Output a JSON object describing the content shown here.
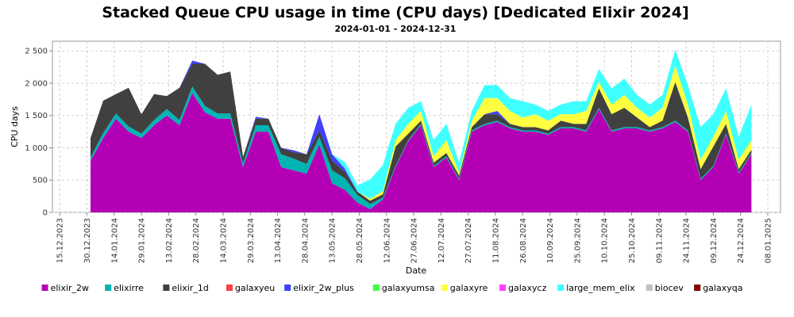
{
  "chart_data": {
    "type": "area",
    "stacked": true,
    "title": "Stacked Queue CPU usage in time (CPU days) [Dedicated Elixir 2024]",
    "subtitle": "2024-01-01 - 2024-12-31",
    "xlabel": "Date",
    "ylabel": "CPU days",
    "ylim": [
      0,
      2650
    ],
    "y_ticks": [
      "0",
      "500",
      "1 000",
      "1 500",
      "2 000",
      "2 500"
    ],
    "y_tick_values": [
      0,
      500,
      1000,
      1500,
      2000,
      2500
    ],
    "xlim": [
      "2023-12-11",
      "2025-01-15"
    ],
    "x_ticks": [
      "15.12.2023",
      "30.12.2023",
      "14.01.2024",
      "29.01.2024",
      "13.02.2024",
      "28.02.2024",
      "14.03.2024",
      "29.03.2024",
      "13.04.2024",
      "28.04.2024",
      "13.05.2024",
      "28.05.2024",
      "12.06.2024",
      "27.06.2024",
      "12.07.2024",
      "27.07.2024",
      "11.08.2024",
      "26.08.2024",
      "10.09.2024",
      "25.09.2024",
      "10.10.2024",
      "25.10.2024",
      "09.11.2024",
      "24.11.2024",
      "09.12.2024",
      "24.12.2024",
      "08.01.2025"
    ],
    "x_tick_dates": [
      "2023-12-15",
      "2023-12-30",
      "2024-01-14",
      "2024-01-29",
      "2024-02-13",
      "2024-02-28",
      "2024-03-14",
      "2024-03-29",
      "2024-04-13",
      "2024-04-28",
      "2024-05-13",
      "2024-05-28",
      "2024-06-12",
      "2024-06-27",
      "2024-07-12",
      "2024-07-27",
      "2024-08-11",
      "2024-08-26",
      "2024-09-10",
      "2024-09-25",
      "2024-10-10",
      "2024-10-25",
      "2024-11-09",
      "2024-11-24",
      "2024-12-09",
      "2024-12-24",
      "2025-01-08"
    ],
    "grid": true,
    "legend_position": "bottom",
    "x": [
      "2024-01-01",
      "2024-01-08",
      "2024-01-15",
      "2024-01-22",
      "2024-01-29",
      "2024-02-05",
      "2024-02-12",
      "2024-02-19",
      "2024-02-26",
      "2024-03-04",
      "2024-03-11",
      "2024-03-18",
      "2024-03-25",
      "2024-04-01",
      "2024-04-08",
      "2024-04-15",
      "2024-04-22",
      "2024-04-29",
      "2024-05-06",
      "2024-05-13",
      "2024-05-20",
      "2024-05-27",
      "2024-06-03",
      "2024-06-10",
      "2024-06-17",
      "2024-06-24",
      "2024-07-01",
      "2024-07-08",
      "2024-07-15",
      "2024-07-22",
      "2024-07-29",
      "2024-08-05",
      "2024-08-12",
      "2024-08-19",
      "2024-08-26",
      "2024-09-02",
      "2024-09-09",
      "2024-09-16",
      "2024-09-23",
      "2024-09-30",
      "2024-10-07",
      "2024-10-14",
      "2024-10-21",
      "2024-10-28",
      "2024-11-04",
      "2024-11-11",
      "2024-11-18",
      "2024-11-25",
      "2024-12-02",
      "2024-12-09",
      "2024-12-16",
      "2024-12-23",
      "2024-12-30"
    ],
    "series": [
      {
        "name": "elixir_2w",
        "color": "#b400b4",
        "values": [
          800,
          1150,
          1450,
          1250,
          1150,
          1350,
          1500,
          1350,
          1850,
          1550,
          1450,
          1450,
          700,
          1250,
          1250,
          700,
          650,
          600,
          1050,
          450,
          350,
          150,
          50,
          200,
          700,
          1100,
          1350,
          700,
          850,
          500,
          1250,
          1350,
          1400,
          1300,
          1250,
          1250,
          1200,
          1300,
          1300,
          1250,
          1600,
          1250,
          1300,
          1300,
          1250,
          1300,
          1400,
          1250,
          500,
          700,
          1200,
          600,
          900
        ]
      },
      {
        "name": "elixirre",
        "color": "#00b4b4",
        "values": [
          50,
          80,
          80,
          80,
          70,
          80,
          100,
          80,
          100,
          100,
          80,
          80,
          60,
          100,
          100,
          200,
          180,
          150,
          120,
          200,
          180,
          120,
          80,
          30,
          20,
          20,
          20,
          20,
          20,
          20,
          20,
          20,
          20,
          20,
          20,
          20,
          20,
          20,
          20,
          20,
          20,
          20,
          20,
          20,
          20,
          20,
          20,
          20,
          20,
          20,
          20,
          20,
          20
        ]
      },
      {
        "name": "elixir_1d",
        "color": "#404040",
        "values": [
          300,
          500,
          300,
          600,
          300,
          400,
          200,
          500,
          350,
          650,
          600,
          650,
          100,
          100,
          100,
          100,
          100,
          150,
          100,
          150,
          100,
          50,
          50,
          50,
          300,
          100,
          50,
          50,
          50,
          50,
          50,
          150,
          100,
          50,
          50,
          50,
          50,
          100,
          50,
          100,
          300,
          250,
          300,
          150,
          50,
          100,
          600,
          200,
          150,
          300,
          150,
          50,
          50
        ]
      },
      {
        "name": "galaxyeu",
        "color": "#ff4040",
        "values": [
          0,
          0,
          0,
          0,
          0,
          0,
          0,
          0,
          0,
          0,
          0,
          0,
          0,
          0,
          0,
          0,
          0,
          0,
          0,
          0,
          0,
          0,
          0,
          0,
          0,
          0,
          0,
          0,
          0,
          0,
          0,
          0,
          0,
          0,
          0,
          0,
          0,
          0,
          0,
          0,
          0,
          0,
          0,
          0,
          0,
          0,
          0,
          0,
          0,
          0,
          0,
          0,
          0
        ]
      },
      {
        "name": "elixir_2w_plus",
        "color": "#4040ff",
        "values": [
          0,
          0,
          0,
          0,
          0,
          0,
          0,
          0,
          50,
          0,
          0,
          0,
          0,
          30,
          0,
          0,
          30,
          0,
          250,
          100,
          50,
          0,
          0,
          0,
          0,
          0,
          0,
          0,
          0,
          0,
          0,
          0,
          50,
          0,
          0,
          0,
          0,
          0,
          0,
          0,
          0,
          0,
          0,
          0,
          0,
          0,
          0,
          0,
          0,
          0,
          0,
          0,
          0
        ]
      },
      {
        "name": "galaxyumsa",
        "color": "#40ff40",
        "values": [
          0,
          0,
          0,
          0,
          0,
          0,
          0,
          0,
          0,
          0,
          0,
          0,
          0,
          0,
          0,
          0,
          0,
          0,
          0,
          0,
          0,
          0,
          0,
          0,
          0,
          0,
          0,
          0,
          0,
          0,
          0,
          0,
          0,
          0,
          0,
          0,
          0,
          0,
          0,
          0,
          0,
          0,
          0,
          0,
          0,
          0,
          0,
          0,
          0,
          0,
          0,
          0,
          0
        ]
      },
      {
        "name": "galaxyre",
        "color": "#ffff40",
        "values": [
          0,
          0,
          0,
          0,
          0,
          0,
          0,
          0,
          0,
          0,
          0,
          0,
          0,
          0,
          0,
          0,
          0,
          0,
          0,
          0,
          0,
          0,
          30,
          50,
          100,
          150,
          150,
          100,
          200,
          50,
          100,
          250,
          200,
          200,
          150,
          200,
          150,
          100,
          150,
          200,
          100,
          150,
          200,
          150,
          150,
          200,
          250,
          200,
          150,
          150,
          200,
          150,
          150
        ]
      },
      {
        "name": "galaxycz",
        "color": "#ff40ff",
        "values": [
          0,
          0,
          0,
          0,
          0,
          0,
          0,
          0,
          0,
          0,
          0,
          0,
          0,
          0,
          0,
          0,
          0,
          0,
          0,
          0,
          0,
          0,
          0,
          0,
          0,
          0,
          0,
          0,
          0,
          0,
          0,
          0,
          0,
          0,
          0,
          0,
          0,
          0,
          0,
          0,
          0,
          0,
          0,
          0,
          0,
          0,
          0,
          0,
          0,
          0,
          0,
          0,
          0
        ]
      },
      {
        "name": "large_mem_elix",
        "color": "#40ffff",
        "values": [
          0,
          0,
          0,
          0,
          0,
          0,
          0,
          0,
          0,
          0,
          0,
          0,
          0,
          0,
          0,
          0,
          0,
          0,
          0,
          0,
          100,
          100,
          300,
          400,
          250,
          250,
          150,
          250,
          250,
          150,
          150,
          200,
          200,
          200,
          250,
          150,
          150,
          150,
          200,
          150,
          200,
          250,
          250,
          200,
          200,
          200,
          250,
          300,
          500,
          350,
          350,
          350,
          550
        ]
      },
      {
        "name": "biocev",
        "color": "#c0c0c0",
        "values": [
          0,
          0,
          0,
          0,
          0,
          0,
          0,
          0,
          0,
          0,
          0,
          0,
          0,
          0,
          0,
          0,
          0,
          0,
          0,
          0,
          0,
          0,
          0,
          0,
          0,
          0,
          0,
          0,
          0,
          0,
          0,
          0,
          0,
          0,
          0,
          0,
          0,
          0,
          0,
          0,
          0,
          0,
          0,
          0,
          0,
          0,
          0,
          0,
          0,
          0,
          0,
          0,
          0
        ]
      },
      {
        "name": "galaxyqa",
        "color": "#800000",
        "values": [
          0,
          0,
          0,
          0,
          0,
          0,
          0,
          0,
          0,
          0,
          0,
          0,
          0,
          0,
          0,
          0,
          0,
          0,
          0,
          0,
          0,
          0,
          0,
          0,
          0,
          0,
          0,
          0,
          0,
          0,
          0,
          0,
          0,
          0,
          0,
          0,
          0,
          0,
          0,
          0,
          0,
          0,
          0,
          0,
          0,
          0,
          0,
          0,
          0,
          0,
          0,
          0,
          0
        ]
      }
    ]
  }
}
